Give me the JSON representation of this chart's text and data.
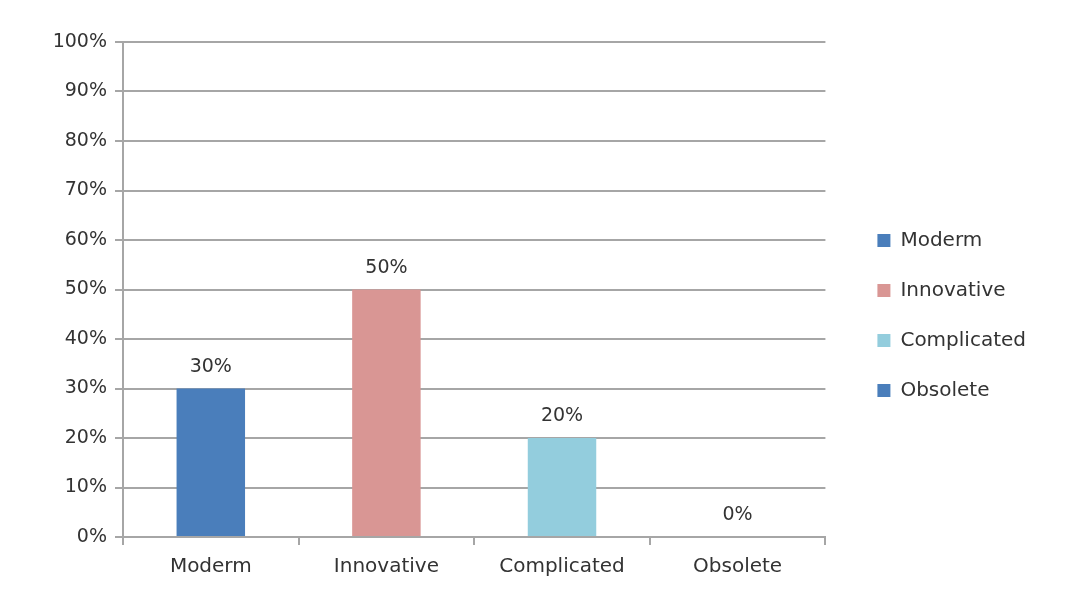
{
  "chart_data": {
    "type": "bar",
    "categories": [
      "Moderm",
      "Innovative",
      "Complicated",
      "Obsolete"
    ],
    "series": [
      {
        "name": "Moderm",
        "color": "#4a7ebb",
        "values": [
          30,
          null,
          null,
          null
        ],
        "value_labels": [
          "30%",
          null,
          null,
          null
        ]
      },
      {
        "name": "Innovative",
        "color": "#d99694",
        "values": [
          null,
          50,
          null,
          null
        ],
        "value_labels": [
          null,
          "50%",
          null,
          null
        ]
      },
      {
        "name": "Complicated",
        "color": "#93cddd",
        "values": [
          null,
          null,
          20,
          null
        ],
        "value_labels": [
          null,
          null,
          "20%",
          null
        ]
      },
      {
        "name": "Obsolete",
        "color": "#4a7ebb",
        "values": [
          null,
          null,
          null,
          0
        ],
        "value_labels": [
          null,
          null,
          null,
          "0%"
        ]
      }
    ],
    "ylim": [
      0,
      100
    ],
    "yticks": [
      {
        "value": 0,
        "label": "0%"
      },
      {
        "value": 10,
        "label": "10%"
      },
      {
        "value": 20,
        "label": "20%"
      },
      {
        "value": 30,
        "label": "30%"
      },
      {
        "value": 40,
        "label": "40%"
      },
      {
        "value": 50,
        "label": "50%"
      },
      {
        "value": 60,
        "label": "60%"
      },
      {
        "value": 70,
        "label": "70%"
      },
      {
        "value": 80,
        "label": "80%"
      },
      {
        "value": 90,
        "label": "90%"
      },
      {
        "value": 100,
        "label": "100%"
      }
    ],
    "grid": "y",
    "legend": "right"
  }
}
